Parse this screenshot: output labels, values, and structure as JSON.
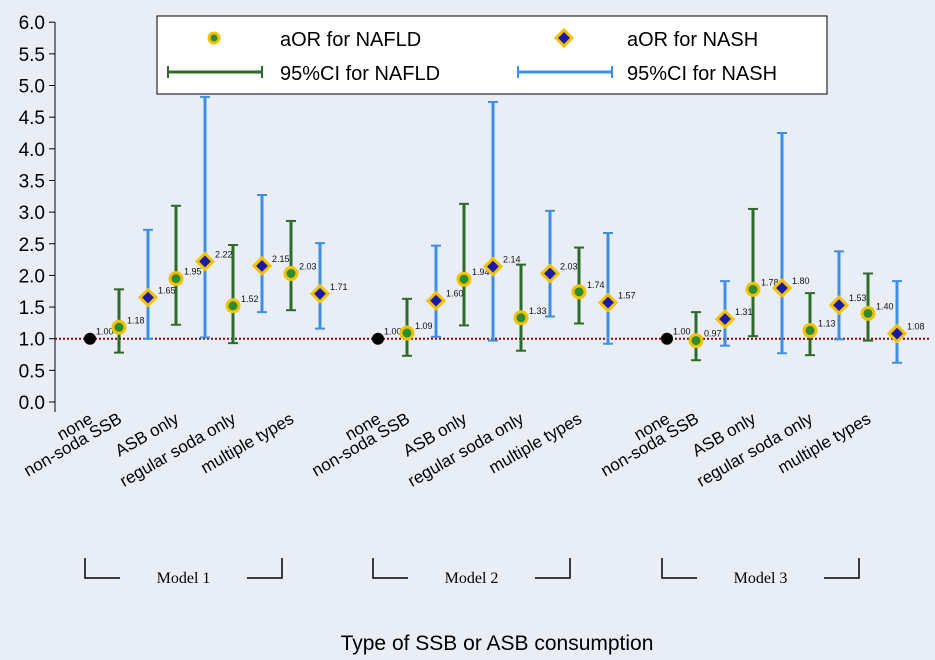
{
  "chart_data": {
    "type": "scatter",
    "xlabel": "Type of SSB or ASB consumption",
    "ylim": [
      0,
      6
    ],
    "y_ticks": [
      "0.0",
      "0.5",
      "1.0",
      "1.5",
      "2.0",
      "2.5",
      "3.0",
      "3.5",
      "4.0",
      "4.5",
      "5.0",
      "5.5",
      "6.0"
    ],
    "reference_line": 1.0,
    "categories": [
      "none",
      "non-soda SSB",
      "ASB only",
      "regular soda only",
      "multiple types"
    ],
    "legend": {
      "placement": "top",
      "nafld_point": "aOR for NAFLD",
      "nash_point": "aOR for NASH",
      "nafld_ci": "95%CI for NAFLD",
      "nash_ci": "95%CI for NASH"
    },
    "colors": {
      "background": "#e9eef6",
      "nafld_ci": "#2e6b2a",
      "nafld_fill": "#2e8b2e",
      "nash_ci": "#3d8fe6",
      "nash_fill": "#1a1aa8",
      "marker_outline": "#f2c200",
      "reference": "#8b0000"
    },
    "models": [
      {
        "name": "Model 1",
        "reference": {
          "label": "1.00"
        },
        "nafld": [
          {
            "category": "non-soda SSB",
            "value": 1.18,
            "label": "1.18",
            "ci": [
              0.78,
              1.78
            ]
          },
          {
            "category": "ASB only",
            "value": 1.95,
            "label": "1.95",
            "ci": [
              1.22,
              3.1
            ]
          },
          {
            "category": "regular soda only",
            "value": 1.52,
            "label": "1.52",
            "ci": [
              0.93,
              2.48
            ]
          },
          {
            "category": "multiple types",
            "value": 2.03,
            "label": "2.03",
            "ci": [
              1.45,
              2.86
            ]
          }
        ],
        "nash": [
          {
            "category": "non-soda SSB",
            "value": 1.65,
            "label": "1.65",
            "ci": [
              1.0,
              2.72
            ]
          },
          {
            "category": "ASB only",
            "value": 2.22,
            "label": "2.22",
            "ci": [
              1.02,
              4.82
            ]
          },
          {
            "category": "regular soda only",
            "value": 2.15,
            "label": "2.15",
            "ci": [
              1.42,
              3.27
            ]
          },
          {
            "category": "multiple types",
            "value": 1.71,
            "label": "1.71",
            "ci": [
              1.16,
              2.51
            ]
          }
        ]
      },
      {
        "name": "Model 2",
        "reference": {
          "label": "1.00"
        },
        "nafld": [
          {
            "category": "non-soda SSB",
            "value": 1.09,
            "label": "1.09",
            "ci": [
              0.73,
              1.63
            ]
          },
          {
            "category": "ASB only",
            "value": 1.94,
            "label": "1.94",
            "ci": [
              1.21,
              3.13
            ]
          },
          {
            "category": "regular soda only",
            "value": 1.33,
            "label": "1.33",
            "ci": [
              0.81,
              2.17
            ]
          },
          {
            "category": "multiple types",
            "value": 1.74,
            "label": "1.74",
            "ci": [
              1.24,
              2.44
            ]
          }
        ],
        "nash": [
          {
            "category": "non-soda SSB",
            "value": 1.6,
            "label": "1.60",
            "ci": [
              1.03,
              2.47
            ]
          },
          {
            "category": "ASB only",
            "value": 2.14,
            "label": "2.14",
            "ci": [
              0.97,
              4.74
            ]
          },
          {
            "category": "regular soda only",
            "value": 2.03,
            "label": "2.03",
            "ci": [
              1.35,
              3.02
            ]
          },
          {
            "category": "multiple types",
            "value": 1.57,
            "label": "1.57",
            "ci": [
              0.92,
              2.67
            ]
          }
        ]
      },
      {
        "name": "Model 3",
        "reference": {
          "label": "1.00"
        },
        "nafld": [
          {
            "category": "non-soda SSB",
            "value": 0.97,
            "label": "0.97",
            "ci": [
              0.66,
              1.42
            ]
          },
          {
            "category": "ASB only",
            "value": 1.78,
            "label": "1.78",
            "ci": [
              1.04,
              3.05
            ]
          },
          {
            "category": "regular soda only",
            "value": 1.13,
            "label": "1.13",
            "ci": [
              0.74,
              1.72
            ]
          },
          {
            "category": "multiple types",
            "value": 1.4,
            "label": "1.40",
            "ci": [
              0.97,
              2.03
            ]
          }
        ],
        "nash": [
          {
            "category": "non-soda SSB",
            "value": 1.31,
            "label": "1.31",
            "ci": [
              0.89,
              1.91
            ]
          },
          {
            "category": "ASB only",
            "value": 1.8,
            "label": "1.80",
            "ci": [
              0.77,
              4.25
            ]
          },
          {
            "category": "regular soda only",
            "value": 1.53,
            "label": "1.53",
            "ci": [
              0.99,
              2.38
            ]
          },
          {
            "category": "multiple types",
            "value": 1.08,
            "label": "1.08",
            "ci": [
              0.62,
              1.91
            ]
          }
        ]
      }
    ]
  }
}
